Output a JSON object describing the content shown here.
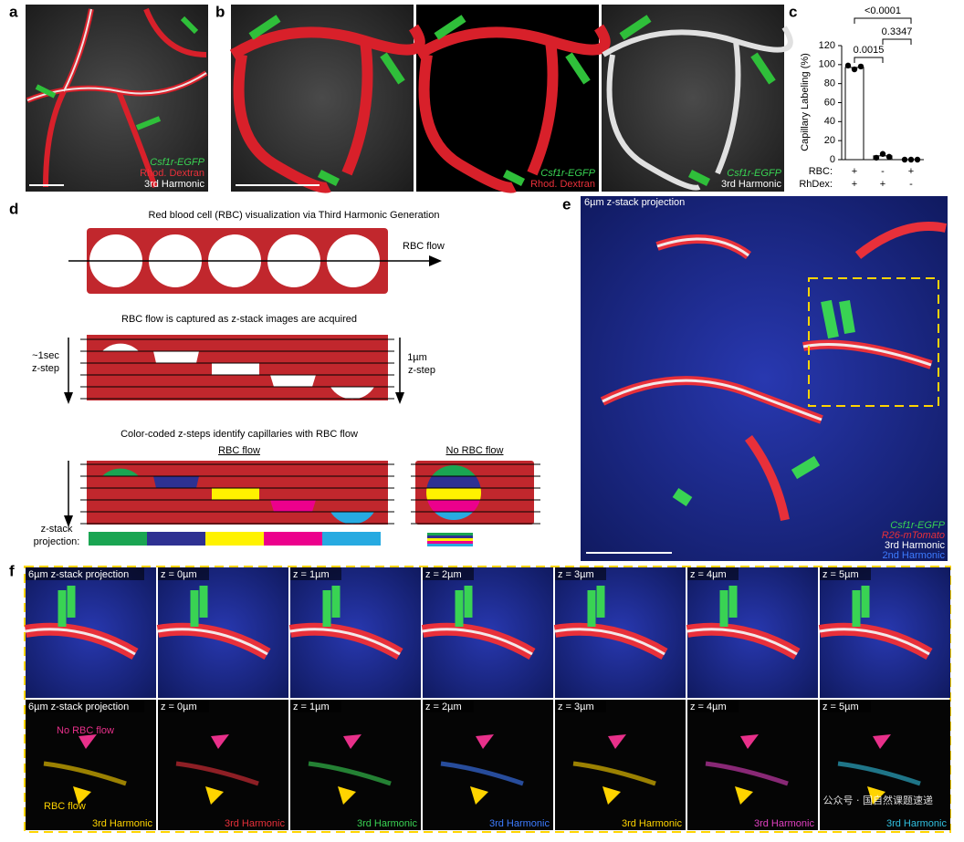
{
  "panel_labels": [
    "a",
    "b",
    "c",
    "d",
    "e",
    "f"
  ],
  "panel_a": {
    "labels": [
      "Csf1r-EGFP",
      "Rhod. Dextran",
      "3rd Harmonic"
    ]
  },
  "panel_b": {
    "middle_labels": [
      "Csf1r-EGFP",
      "Rhod. Dextran"
    ],
    "right_labels": [
      "Csf1r-EGFP",
      "3rd Harmonic"
    ]
  },
  "chart_data": {
    "type": "bar",
    "y_label": "Capillary Labeling (%)",
    "row_labels": [
      "RBC:",
      "RhDex:"
    ],
    "rbc": [
      "+",
      "-",
      "+"
    ],
    "rhdex": [
      "+",
      "+",
      "-"
    ],
    "values": [
      97,
      4,
      0
    ],
    "points": [
      [
        99,
        95,
        98
      ],
      [
        2,
        6,
        3
      ],
      [
        0,
        0,
        0
      ]
    ],
    "ylim": [
      0,
      120
    ],
    "yticks": [
      0,
      20,
      40,
      60,
      80,
      100,
      120
    ],
    "annotations": [
      "0.0015",
      "0.3347",
      "<0.0001"
    ],
    "color": "#ffffff"
  },
  "panel_d": {
    "title_1": "Red blood cell (RBC) visualization via Third Harmonic Generation",
    "flow_label": "RBC flow",
    "title_2": "RBC flow is captured as z-stack images are acquired",
    "left_step": [
      "~1sec",
      "z-step"
    ],
    "right_step": [
      "1µm",
      "z-step"
    ],
    "title_3": "Color-coded z-steps identify capillaries with RBC flow",
    "no_flow_label": "No RBC flow",
    "projection": [
      "z-stack",
      "projection:"
    ]
  },
  "panel_e": {
    "title": "6µm z-stack projection",
    "legend": [
      {
        "name": "Csf1r-EGFP",
        "color": "#39d353"
      },
      {
        "name": "R26-mTomato",
        "color": "#e8303a"
      },
      {
        "name": "3rd Harmonic",
        "color": "#ffffff"
      },
      {
        "name": "2nd Harmonic",
        "color": "#3d7bff"
      }
    ]
  },
  "panel_f": {
    "column_titles": [
      "6µm z-stack projection",
      "z = 0µm",
      "z = 1µm",
      "z = 2µm",
      "z = 3µm",
      "z = 4µm",
      "z = 5µm"
    ],
    "harmonic_label": "3rd Harmonic",
    "harmonic_colors": [
      "#ffd400",
      "#e8303a",
      "#39d353",
      "#3d7bff",
      "#ffd400",
      "#e040c0",
      "#30c0e0"
    ],
    "no_flow": "No RBC flow",
    "flow": "RBC flow"
  },
  "watermark": "公众号 · 国自然课题速递"
}
